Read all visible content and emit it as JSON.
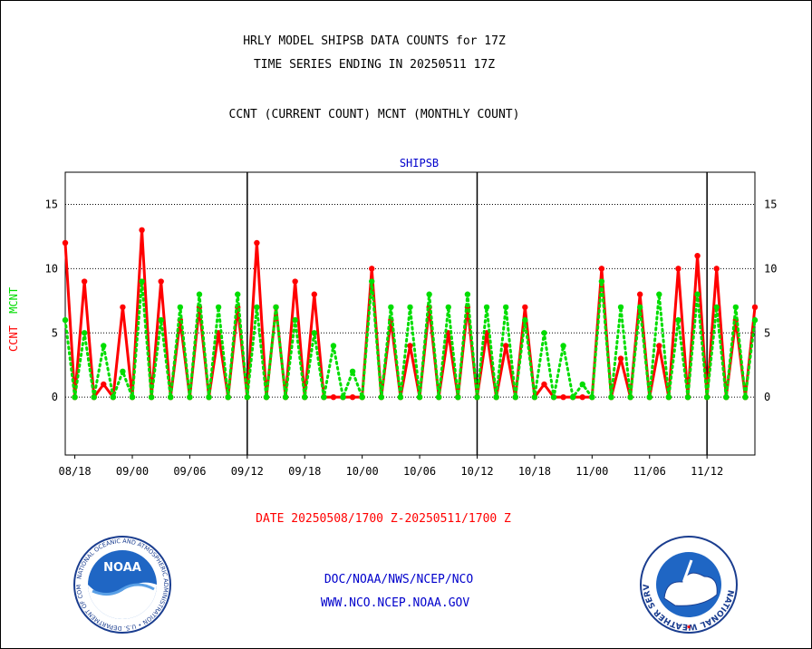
{
  "header": {
    "line1": "HRLY MODEL SHIPSB DATA COUNTS for 17Z",
    "line2": "TIME SERIES ENDING IN 20250511 17Z",
    "line3": "CCNT (CURRENT COUNT) MCNT (MONTHLY COUNT)"
  },
  "footer": {
    "date_range": "DATE 20250508/1700 Z-20250511/1700 Z",
    "org": "DOC/NOAA/NWS/NCEP/NCO",
    "url": "WWW.NCO.NCEP.NOAA.GOV"
  },
  "logos": {
    "noaa_text": "NOAA",
    "noaa_ring": "NATIONAL OCEANIC AND ATMOSPHERIC ADMINISTRATION • U.S. DEPARTMENT OF COMMERCE",
    "nws_ring": "NATIONAL WEATHER SERVICE"
  },
  "colors": {
    "ccnt": "#ff0000",
    "mcnt": "#00dd00",
    "subtitle": "#0000cc",
    "footer_link": "#0000cc",
    "date_text": "#ff0000"
  },
  "chart_data": {
    "type": "line",
    "subtitle": "SHIPSB",
    "ylabel_ccnt": "CCNT",
    "ylabel_mcnt": "MCNT",
    "ylim": [
      -4.5,
      17.5
    ],
    "yticks": [
      0,
      5,
      10,
      15
    ],
    "xlim": [
      0,
      72
    ],
    "xtick_labels": [
      "08/18",
      "09/00",
      "09/06",
      "09/12",
      "09/18",
      "10/00",
      "10/06",
      "10/12",
      "10/18",
      "11/00",
      "11/06",
      "11/12"
    ],
    "xtick_positions": [
      1,
      7,
      13,
      19,
      25,
      31,
      37,
      43,
      49,
      55,
      61,
      67
    ],
    "day_boundaries": [
      19,
      43,
      67
    ],
    "grid": true,
    "series": [
      {
        "name": "CCNT",
        "style": "solid",
        "values": [
          12,
          0,
          9,
          0,
          1,
          0,
          7,
          0,
          13,
          0,
          9,
          0,
          6,
          0,
          7,
          0,
          5,
          0,
          7,
          0,
          12,
          0,
          7,
          0,
          9,
          0,
          8,
          0,
          0,
          0,
          0,
          0,
          10,
          0,
          6,
          0,
          4,
          0,
          7,
          0,
          5,
          0,
          7,
          0,
          5,
          0,
          4,
          0,
          7,
          0,
          1,
          0,
          0,
          0,
          0,
          0,
          10,
          0,
          3,
          0,
          8,
          0,
          4,
          0,
          10,
          0,
          11,
          0,
          10,
          0,
          6,
          0,
          7
        ]
      },
      {
        "name": "MCNT",
        "style": "dotted",
        "values": [
          6,
          0,
          5,
          0,
          4,
          0,
          2,
          0,
          9,
          0,
          6,
          0,
          7,
          0,
          8,
          0,
          7,
          0,
          8,
          0,
          7,
          0,
          7,
          0,
          6,
          0,
          5,
          0,
          4,
          0,
          2,
          0,
          9,
          0,
          7,
          0,
          7,
          0,
          8,
          0,
          7,
          0,
          8,
          0,
          7,
          0,
          7,
          0,
          6,
          0,
          5,
          0,
          4,
          0,
          1,
          0,
          9,
          0,
          7,
          0,
          7,
          0,
          8,
          0,
          6,
          0,
          8,
          0,
          7,
          0,
          7,
          0,
          6
        ]
      }
    ]
  }
}
